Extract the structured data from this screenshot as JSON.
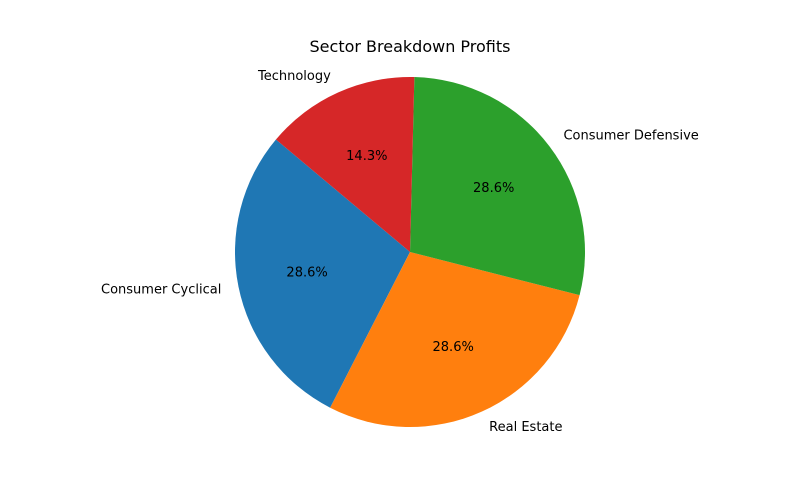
{
  "chart_data": {
    "type": "pie",
    "title": "Sector Breakdown Profits",
    "labels": [
      "Consumer Cyclical",
      "Real Estate",
      "Consumer Defensive",
      "Technology"
    ],
    "values": [
      28.6,
      28.6,
      28.6,
      14.3
    ],
    "percent_labels": [
      "28.6%",
      "28.6%",
      "28.6%",
      "14.3%"
    ],
    "colors": [
      "#1f77b4",
      "#ff7f0e",
      "#2ca02c",
      "#d62728"
    ],
    "start_angle_deg": 140,
    "direction": "counterclockwise",
    "legend": "none"
  }
}
